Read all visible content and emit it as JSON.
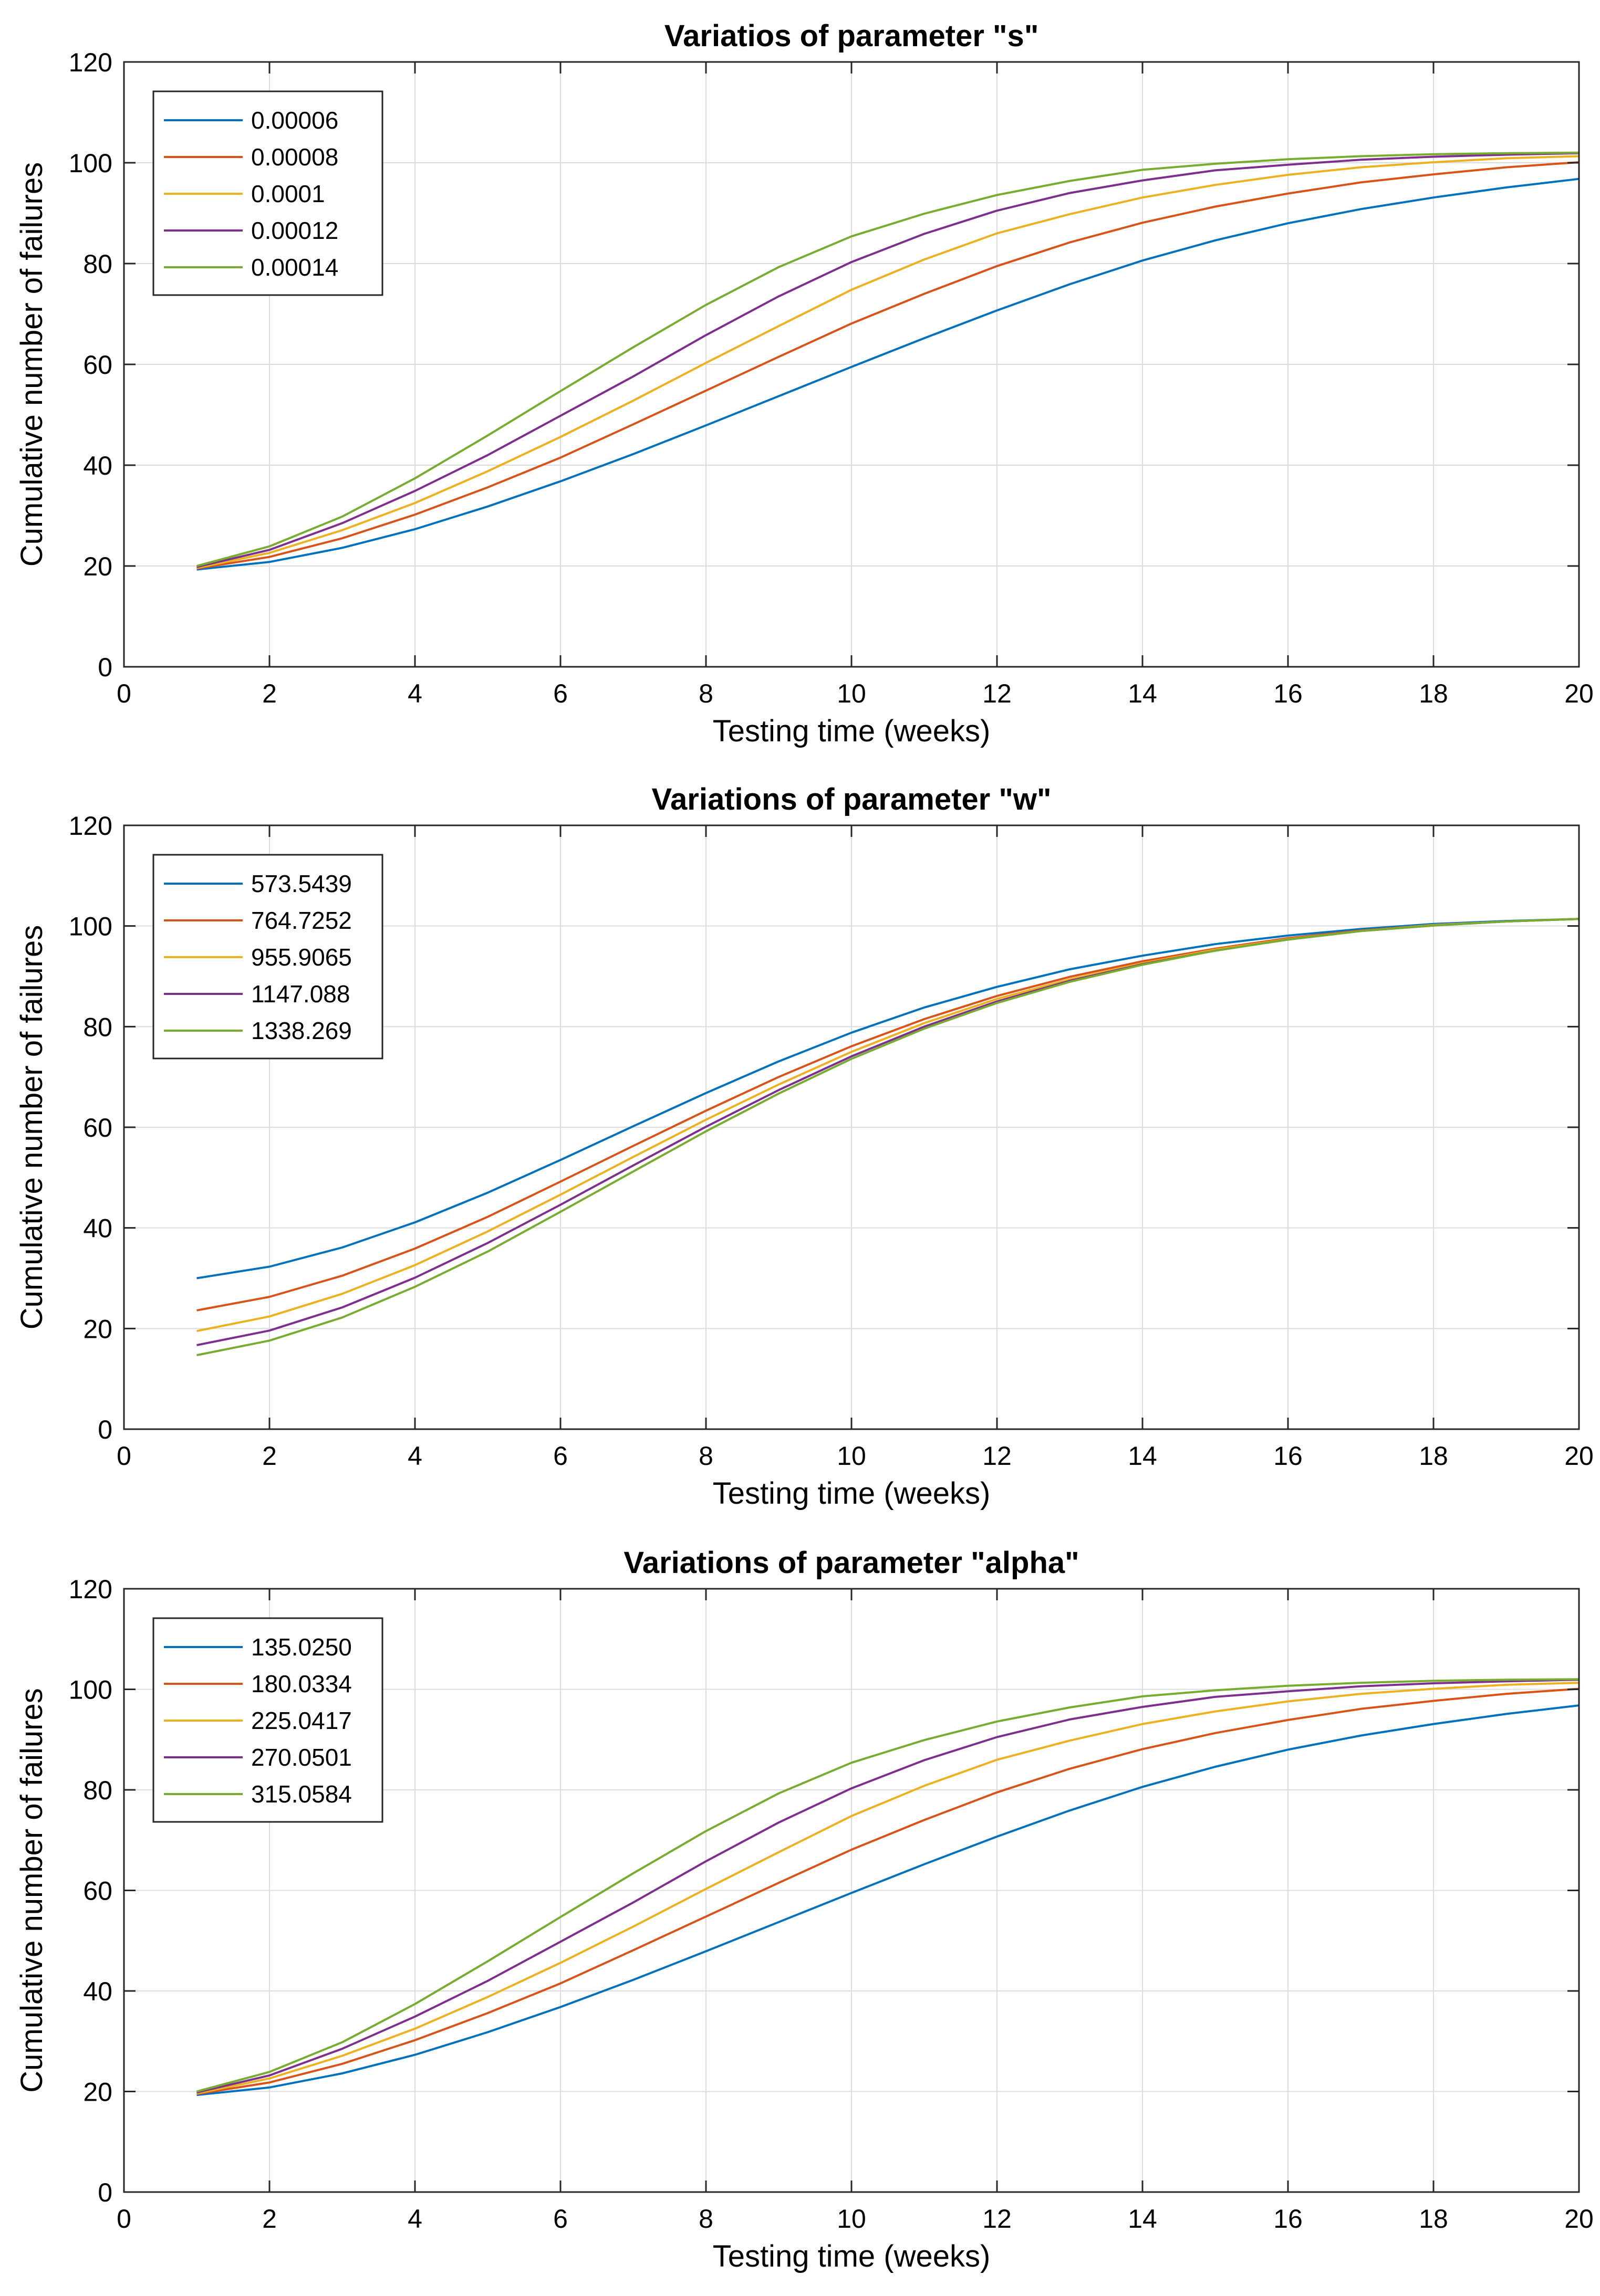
{
  "chart_data": [
    {
      "type": "line",
      "title": "Variatios of parameter \"s\"",
      "xlabel": "Testing time (weeks)",
      "ylabel": "Cumulative number of failures",
      "xlim": [
        0,
        20
      ],
      "ylim": [
        0,
        120
      ],
      "xticks": [
        "0",
        "2",
        "4",
        "6",
        "8",
        "10",
        "12",
        "14",
        "16",
        "18",
        "20"
      ],
      "yticks": [
        "0",
        "20",
        "40",
        "60",
        "80",
        "100",
        "120"
      ],
      "grid": true,
      "legend_position": "top-left",
      "x": [
        1,
        2,
        3,
        4,
        5,
        6,
        7,
        8,
        9,
        10,
        11,
        12,
        13,
        14,
        15,
        16,
        17,
        18,
        19,
        20
      ],
      "series": [
        {
          "name": "0.00006",
          "color": "#0072BD",
          "values": [
            19.3,
            20.8,
            23.6,
            27.3,
            31.8,
            36.8,
            42.2,
            47.9,
            53.7,
            59.5,
            65.2,
            70.7,
            75.9,
            80.6,
            84.6,
            88.0,
            90.8,
            93.1,
            95.1,
            96.8
          ]
        },
        {
          "name": "0.00008",
          "color": "#D95319",
          "values": [
            19.5,
            21.8,
            25.5,
            30.2,
            35.6,
            41.5,
            48.1,
            54.8,
            61.5,
            68.1,
            74.0,
            79.5,
            84.2,
            88.1,
            91.3,
            93.9,
            96.1,
            97.7,
            99.1,
            100.1
          ]
        },
        {
          "name": "0.0001",
          "color": "#EDB120",
          "values": [
            19.6,
            22.6,
            27.1,
            32.5,
            38.8,
            45.6,
            52.8,
            60.3,
            67.6,
            74.8,
            80.8,
            86.0,
            89.8,
            93.1,
            95.6,
            97.6,
            99.1,
            100.1,
            100.9,
            101.3
          ]
        },
        {
          "name": "0.00012",
          "color": "#7E2F8E",
          "values": [
            19.8,
            23.2,
            28.5,
            34.9,
            42.0,
            49.8,
            57.6,
            65.8,
            73.5,
            80.3,
            85.9,
            90.5,
            94.0,
            96.5,
            98.5,
            99.6,
            100.6,
            101.2,
            101.6,
            101.9
          ]
        },
        {
          "name": "0.00014",
          "color": "#77AC30",
          "values": [
            20.0,
            23.9,
            29.8,
            37.4,
            45.9,
            54.7,
            63.4,
            71.8,
            79.3,
            85.4,
            89.9,
            93.6,
            96.4,
            98.6,
            99.8,
            100.7,
            101.3,
            101.7,
            101.9,
            102.0
          ]
        }
      ]
    },
    {
      "type": "line",
      "title": "Variations of parameter \"w\"",
      "xlabel": "Testing time (weeks)",
      "ylabel": "Cumulative number of failures",
      "xlim": [
        0,
        20
      ],
      "ylim": [
        0,
        120
      ],
      "xticks": [
        "0",
        "2",
        "4",
        "6",
        "8",
        "10",
        "12",
        "14",
        "16",
        "18",
        "20"
      ],
      "yticks": [
        "0",
        "20",
        "40",
        "60",
        "80",
        "100",
        "120"
      ],
      "grid": true,
      "legend_position": "top-left",
      "x": [
        1,
        2,
        3,
        4,
        5,
        6,
        7,
        8,
        9,
        10,
        11,
        12,
        13,
        14,
        15,
        16,
        17,
        18,
        19,
        20
      ],
      "series": [
        {
          "name": "573.5439",
          "color": "#0072BD",
          "values": [
            30.0,
            32.3,
            36.1,
            41.1,
            47.0,
            53.5,
            60.2,
            66.8,
            73.1,
            78.8,
            83.8,
            87.9,
            91.4,
            94.1,
            96.4,
            98.1,
            99.4,
            100.4,
            101.0,
            101.4
          ]
        },
        {
          "name": "764.7252",
          "color": "#D95319",
          "values": [
            23.6,
            26.3,
            30.5,
            35.9,
            42.2,
            49.2,
            56.3,
            63.3,
            70.0,
            76.1,
            81.5,
            86.1,
            89.9,
            93.0,
            95.5,
            97.6,
            99.1,
            100.2,
            100.9,
            101.4
          ]
        },
        {
          "name": "955.9065",
          "color": "#EDB120",
          "values": [
            19.5,
            22.4,
            26.9,
            32.6,
            39.3,
            46.6,
            54.1,
            61.5,
            68.5,
            75.0,
            80.7,
            85.5,
            89.4,
            92.6,
            95.3,
            97.4,
            99.0,
            100.2,
            100.9,
            101.4
          ]
        },
        {
          "name": "1147.088",
          "color": "#7E2F8E",
          "values": [
            16.7,
            19.6,
            24.2,
            30.1,
            37.0,
            44.6,
            52.4,
            60.1,
            67.4,
            74.1,
            80.0,
            85.0,
            89.1,
            92.4,
            95.1,
            97.3,
            99.0,
            100.1,
            100.9,
            101.4
          ]
        },
        {
          "name": "1338.269",
          "color": "#77AC30",
          "values": [
            14.7,
            17.6,
            22.2,
            28.3,
            35.3,
            43.2,
            51.2,
            59.2,
            66.7,
            73.6,
            79.6,
            84.7,
            88.9,
            92.3,
            95.1,
            97.3,
            99.0,
            100.1,
            100.9,
            101.4
          ]
        }
      ]
    },
    {
      "type": "line",
      "title": "Variations of parameter \"alpha\"",
      "xlabel": "Testing time (weeks)",
      "ylabel": "Cumulative number of failures",
      "xlim": [
        0,
        20
      ],
      "ylim": [
        0,
        120
      ],
      "xticks": [
        "0",
        "2",
        "4",
        "6",
        "8",
        "10",
        "12",
        "14",
        "16",
        "18",
        "20"
      ],
      "yticks": [
        "0",
        "20",
        "40",
        "60",
        "80",
        "100",
        "120"
      ],
      "grid": true,
      "legend_position": "top-left",
      "x": [
        1,
        2,
        3,
        4,
        5,
        6,
        7,
        8,
        9,
        10,
        11,
        12,
        13,
        14,
        15,
        16,
        17,
        18,
        19,
        20
      ],
      "series": [
        {
          "name": "135.0250",
          "color": "#0072BD",
          "values": [
            19.3,
            20.8,
            23.6,
            27.3,
            31.8,
            36.8,
            42.2,
            47.9,
            53.7,
            59.5,
            65.2,
            70.7,
            75.9,
            80.6,
            84.6,
            88.0,
            90.8,
            93.1,
            95.1,
            96.8
          ]
        },
        {
          "name": "180.0334",
          "color": "#D95319",
          "values": [
            19.5,
            21.8,
            25.5,
            30.2,
            35.6,
            41.5,
            48.1,
            54.8,
            61.5,
            68.1,
            74.0,
            79.5,
            84.2,
            88.1,
            91.3,
            93.9,
            96.1,
            97.7,
            99.1,
            100.1
          ]
        },
        {
          "name": "225.0417",
          "color": "#EDB120",
          "values": [
            19.6,
            22.6,
            27.1,
            32.5,
            38.8,
            45.6,
            52.8,
            60.3,
            67.6,
            74.8,
            80.8,
            86.0,
            89.8,
            93.1,
            95.6,
            97.6,
            99.1,
            100.1,
            100.9,
            101.3
          ]
        },
        {
          "name": "270.0501",
          "color": "#7E2F8E",
          "values": [
            19.8,
            23.2,
            28.5,
            34.9,
            42.0,
            49.8,
            57.6,
            65.8,
            73.5,
            80.3,
            85.9,
            90.5,
            94.0,
            96.5,
            98.5,
            99.6,
            100.6,
            101.2,
            101.6,
            101.9
          ]
        },
        {
          "name": "315.0584",
          "color": "#77AC30",
          "values": [
            20.0,
            23.9,
            29.8,
            37.4,
            45.9,
            54.7,
            63.4,
            71.8,
            79.3,
            85.4,
            89.9,
            93.6,
            96.4,
            98.6,
            99.8,
            100.7,
            101.3,
            101.7,
            101.9,
            102.0
          ]
        }
      ]
    }
  ]
}
